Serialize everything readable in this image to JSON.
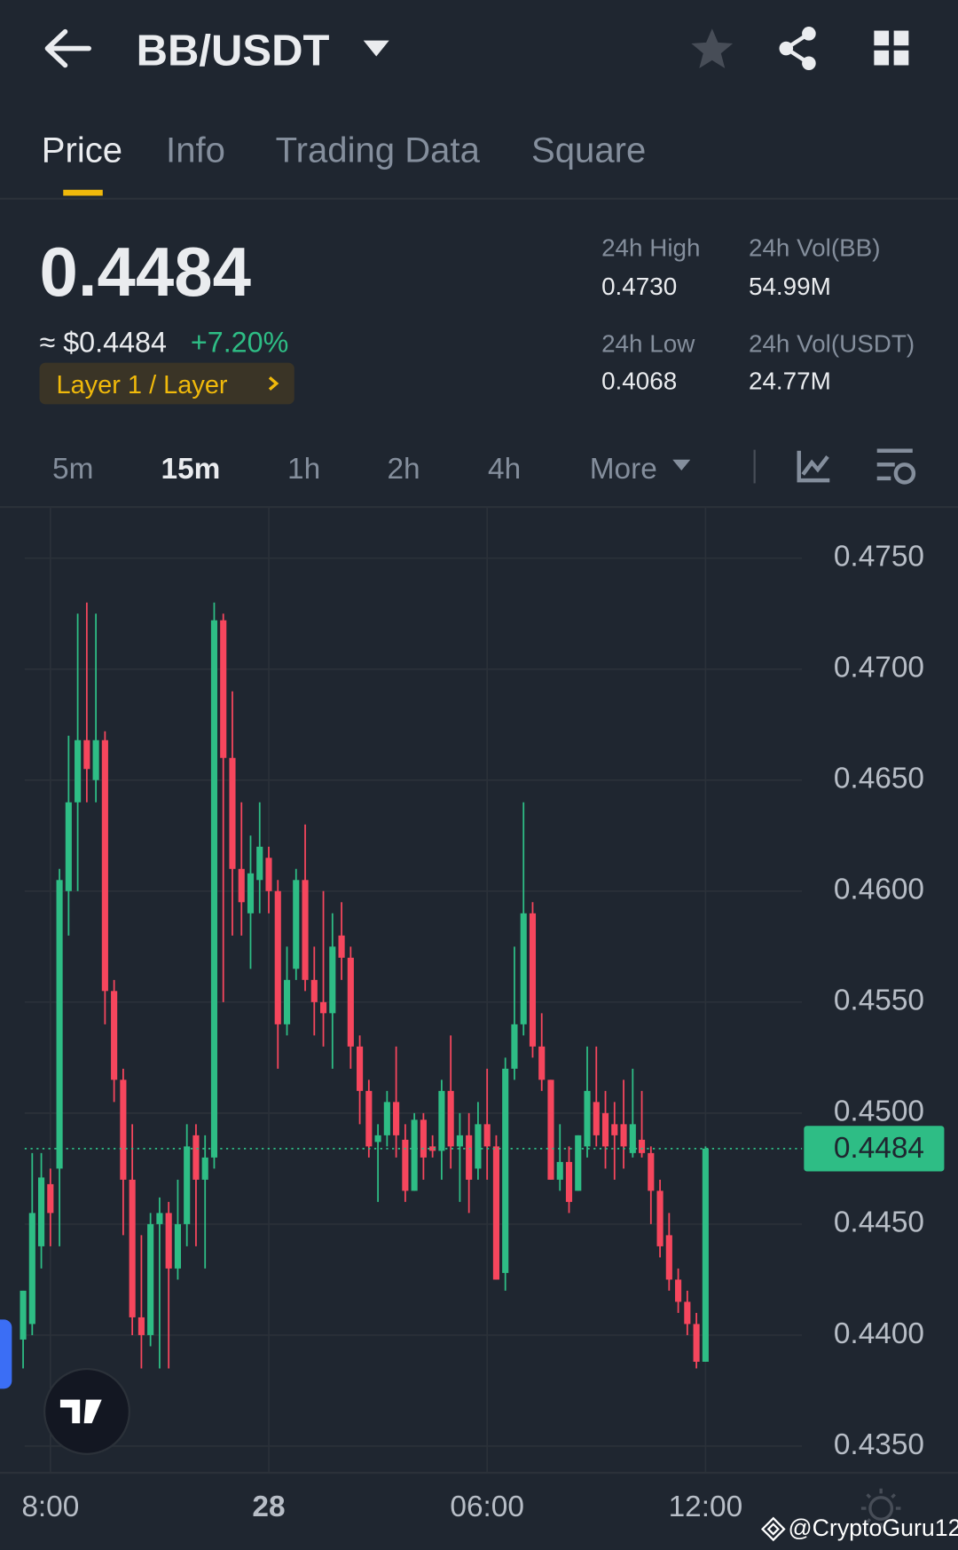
{
  "header": {
    "title": "BB/USDT"
  },
  "tabs": [
    "Price",
    "Info",
    "Trading Data",
    "Square"
  ],
  "ticker": {
    "price": "0.4484",
    "price_usd": "≈ $0.4484",
    "change": "+7.20%",
    "tag": "Layer 1 / Layer",
    "stats": [
      {
        "label": "24h High",
        "value": "0.4730"
      },
      {
        "label": "24h Vol(BB)",
        "value": "54.99M"
      },
      {
        "label": "24h Low",
        "value": "0.4068"
      },
      {
        "label": "24h Vol(USDT)",
        "value": "24.77M"
      }
    ]
  },
  "intervals": [
    "5m",
    "15m",
    "1h",
    "2h",
    "4h",
    "More"
  ],
  "watermark": "@CryptoGuru12",
  "chart_data": {
    "type": "candlestick",
    "x": [
      0,
      1,
      2,
      3,
      4,
      5,
      6,
      7,
      8,
      9,
      10,
      11,
      12,
      13,
      14,
      15,
      16,
      17,
      18,
      19,
      20,
      21,
      22,
      23,
      24,
      25,
      26,
      27,
      28,
      29,
      30,
      31,
      32,
      33,
      34,
      35,
      36,
      37,
      38,
      39,
      40,
      41,
      42,
      43,
      44,
      45,
      46,
      47,
      48,
      49,
      50,
      51,
      52,
      53,
      54,
      55,
      56,
      57,
      58,
      59,
      60,
      61,
      62,
      63,
      64,
      65,
      66,
      67,
      68,
      69,
      70,
      71,
      72,
      73,
      74,
      75
    ],
    "open": [
      0.4398,
      0.4405,
      0.444,
      0.4468,
      0.4475,
      0.46,
      0.464,
      0.4668,
      0.465,
      0.4668,
      0.4555,
      0.4515,
      0.447,
      0.4408,
      0.44,
      0.445,
      0.4455,
      0.443,
      0.445,
      0.449,
      0.447,
      0.448,
      0.4722,
      0.466,
      0.461,
      0.459,
      0.4605,
      0.4615,
      0.46,
      0.454,
      0.4565,
      0.4605,
      0.456,
      0.455,
      0.4545,
      0.458,
      0.457,
      0.453,
      0.451,
      0.4487,
      0.449,
      0.4505,
      0.4488,
      0.4465,
      0.4497,
      0.4485,
      0.4483,
      0.451,
      0.4485,
      0.449,
      0.4475,
      0.4495,
      0.4485,
      0.4428,
      0.452,
      0.454,
      0.459,
      0.453,
      0.4515,
      0.447,
      0.4478,
      0.4465,
      0.4485,
      0.4505,
      0.45,
      0.4495,
      0.4495,
      0.4482,
      0.4488,
      0.4482,
      0.4465,
      0.4445,
      0.4425,
      0.4415,
      0.4405,
      0.4388
    ],
    "high": [
      0.442,
      0.4482,
      0.4482,
      0.4475,
      0.461,
      0.467,
      0.4725,
      0.473,
      0.4725,
      0.4672,
      0.456,
      0.452,
      0.4495,
      0.4445,
      0.4455,
      0.4462,
      0.446,
      0.447,
      0.4495,
      0.4495,
      0.449,
      0.473,
      0.4725,
      0.469,
      0.464,
      0.4625,
      0.464,
      0.462,
      0.4605,
      0.4575,
      0.461,
      0.463,
      0.4575,
      0.46,
      0.459,
      0.4595,
      0.4575,
      0.4535,
      0.4515,
      0.4495,
      0.451,
      0.453,
      0.4495,
      0.45,
      0.45,
      0.449,
      0.4515,
      0.4535,
      0.45,
      0.45,
      0.4505,
      0.452,
      0.449,
      0.4525,
      0.4575,
      0.464,
      0.4595,
      0.4545,
      0.4515,
      0.4495,
      0.4485,
      0.449,
      0.453,
      0.453,
      0.451,
      0.4505,
      0.4515,
      0.452,
      0.451,
      0.4485,
      0.447,
      0.4455,
      0.443,
      0.442,
      0.441,
      0.4485
    ],
    "low": [
      0.4385,
      0.44,
      0.443,
      0.444,
      0.444,
      0.458,
      0.46,
      0.464,
      0.464,
      0.454,
      0.4505,
      0.4445,
      0.44,
      0.4385,
      0.4395,
      0.4385,
      0.4385,
      0.4425,
      0.444,
      0.444,
      0.443,
      0.4475,
      0.455,
      0.458,
      0.458,
      0.4565,
      0.459,
      0.459,
      0.452,
      0.4535,
      0.456,
      0.4555,
      0.4535,
      0.453,
      0.452,
      0.456,
      0.452,
      0.4495,
      0.448,
      0.446,
      0.4485,
      0.448,
      0.446,
      0.4465,
      0.447,
      0.448,
      0.447,
      0.4475,
      0.446,
      0.4455,
      0.447,
      0.447,
      0.4425,
      0.442,
      0.4515,
      0.4535,
      0.4525,
      0.451,
      0.447,
      0.4465,
      0.4455,
      0.4465,
      0.448,
      0.4485,
      0.4475,
      0.447,
      0.4475,
      0.448,
      0.448,
      0.445,
      0.4435,
      0.442,
      0.441,
      0.44,
      0.4385,
      0.4388
    ],
    "close": [
      0.442,
      0.4455,
      0.4471,
      0.4455,
      0.4605,
      0.464,
      0.4668,
      0.4655,
      0.4668,
      0.4555,
      0.4515,
      0.447,
      0.4408,
      0.44,
      0.445,
      0.4455,
      0.443,
      0.445,
      0.4485,
      0.447,
      0.448,
      0.4722,
      0.466,
      0.461,
      0.4595,
      0.4608,
      0.462,
      0.46,
      0.454,
      0.456,
      0.4605,
      0.456,
      0.455,
      0.4545,
      0.4575,
      0.457,
      0.453,
      0.451,
      0.4485,
      0.449,
      0.4505,
      0.449,
      0.4465,
      0.4497,
      0.448,
      0.4483,
      0.451,
      0.4485,
      0.449,
      0.447,
      0.4495,
      0.4485,
      0.4425,
      0.452,
      0.454,
      0.459,
      0.453,
      0.4515,
      0.447,
      0.4478,
      0.446,
      0.449,
      0.451,
      0.449,
      0.4485,
      0.449,
      0.4485,
      0.4495,
      0.4482,
      0.4465,
      0.444,
      0.4425,
      0.4415,
      0.4405,
      0.4388,
      0.4484
    ],
    "up_color": "#2ebd85",
    "down_color": "#f6465d",
    "xlim": [
      -2.54,
      85.6
    ],
    "xticks": [
      {
        "value": 3,
        "label": "8:00"
      },
      {
        "value": 27,
        "label": "28"
      },
      {
        "value": 51,
        "label": "06:00"
      },
      {
        "value": 75,
        "label": "12:00"
      }
    ],
    "ylim": [
      0.4338,
      0.4773
    ],
    "yticks": [
      {
        "value": 0.475,
        "label": "0.4750"
      },
      {
        "value": 0.47,
        "label": "0.4700"
      },
      {
        "value": 0.465,
        "label": "0.4650"
      },
      {
        "value": 0.46,
        "label": "0.4600"
      },
      {
        "value": 0.455,
        "label": "0.4550"
      },
      {
        "value": 0.45,
        "label": "0.4500"
      },
      {
        "value": 0.445,
        "label": "0.4450"
      },
      {
        "value": 0.44,
        "label": "0.4400"
      },
      {
        "value": 0.435,
        "label": "0.4350"
      }
    ],
    "grid": true
  }
}
